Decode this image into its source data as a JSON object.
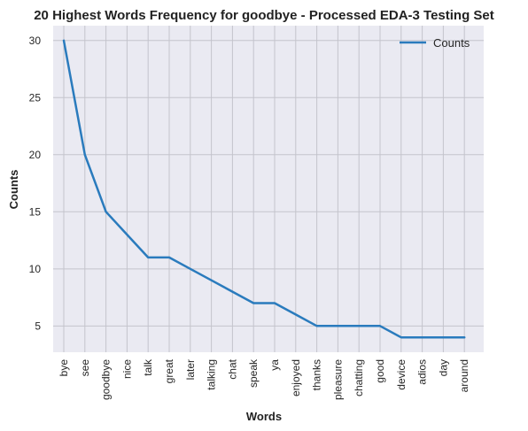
{
  "chart_data": {
    "type": "line",
    "title": "20 Highest Words Frequency for goodbye - Processed EDA-3 Testing Set",
    "xlabel": "Words",
    "ylabel": "Counts",
    "categories": [
      "bye",
      "see",
      "goodbye",
      "nice",
      "talk",
      "great",
      "later",
      "talking",
      "chat",
      "speak",
      "ya",
      "enjoyed",
      "thanks",
      "pleasure",
      "chatting",
      "good",
      "device",
      "adios",
      "day",
      "around"
    ],
    "series": [
      {
        "name": "Counts",
        "values": [
          30,
          20,
          15,
          13,
          11,
          11,
          10,
          9,
          8,
          7,
          7,
          6,
          5,
          5,
          5,
          5,
          4,
          4,
          4,
          4
        ],
        "color": "#2a7bbd"
      }
    ],
    "yticks": [
      5,
      10,
      15,
      20,
      25,
      30
    ],
    "ylim": [
      2.7,
      31.3
    ],
    "grid": true,
    "legend_position": "top-right",
    "plot_background": "#eaeaf2",
    "grid_color": "#c4c4cc"
  }
}
